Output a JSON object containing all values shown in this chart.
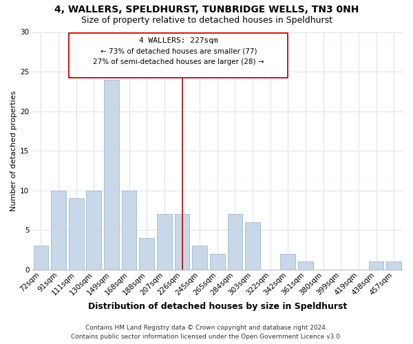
{
  "title": "4, WALLERS, SPELDHURST, TUNBRIDGE WELLS, TN3 0NH",
  "subtitle": "Size of property relative to detached houses in Speldhurst",
  "xlabel": "Distribution of detached houses by size in Speldhurst",
  "ylabel": "Number of detached properties",
  "categories": [
    "72sqm",
    "91sqm",
    "111sqm",
    "130sqm",
    "149sqm",
    "168sqm",
    "188sqm",
    "207sqm",
    "226sqm",
    "245sqm",
    "265sqm",
    "284sqm",
    "303sqm",
    "322sqm",
    "342sqm",
    "361sqm",
    "380sqm",
    "399sqm",
    "419sqm",
    "438sqm",
    "457sqm"
  ],
  "values": [
    3,
    10,
    9,
    10,
    24,
    10,
    4,
    7,
    7,
    3,
    2,
    7,
    6,
    0,
    2,
    1,
    0,
    0,
    0,
    1,
    1
  ],
  "bar_color": "#c8d8e8",
  "bar_edge_color": "#a0b8cc",
  "vline_x_index": 8,
  "vline_color": "#cc0000",
  "annotation_title": "4 WALLERS: 227sqm",
  "annotation_line1": "← 73% of detached houses are smaller (77)",
  "annotation_line2": "27% of semi-detached houses are larger (28) →",
  "annotation_box_color": "#ffffff",
  "annotation_box_edge_color": "#cc0000",
  "ylim": [
    0,
    30
  ],
  "yticks": [
    0,
    5,
    10,
    15,
    20,
    25,
    30
  ],
  "footer_line1": "Contains HM Land Registry data © Crown copyright and database right 2024.",
  "footer_line2": "Contains public sector information licensed under the Open Government Licence v3.0.",
  "background_color": "#ffffff",
  "grid_color": "#dde4ea",
  "title_fontsize": 10,
  "subtitle_fontsize": 9,
  "xlabel_fontsize": 9,
  "ylabel_fontsize": 8,
  "tick_fontsize": 7.5,
  "annotation_title_fontsize": 8,
  "annotation_text_fontsize": 7.5,
  "footer_fontsize": 6.5
}
